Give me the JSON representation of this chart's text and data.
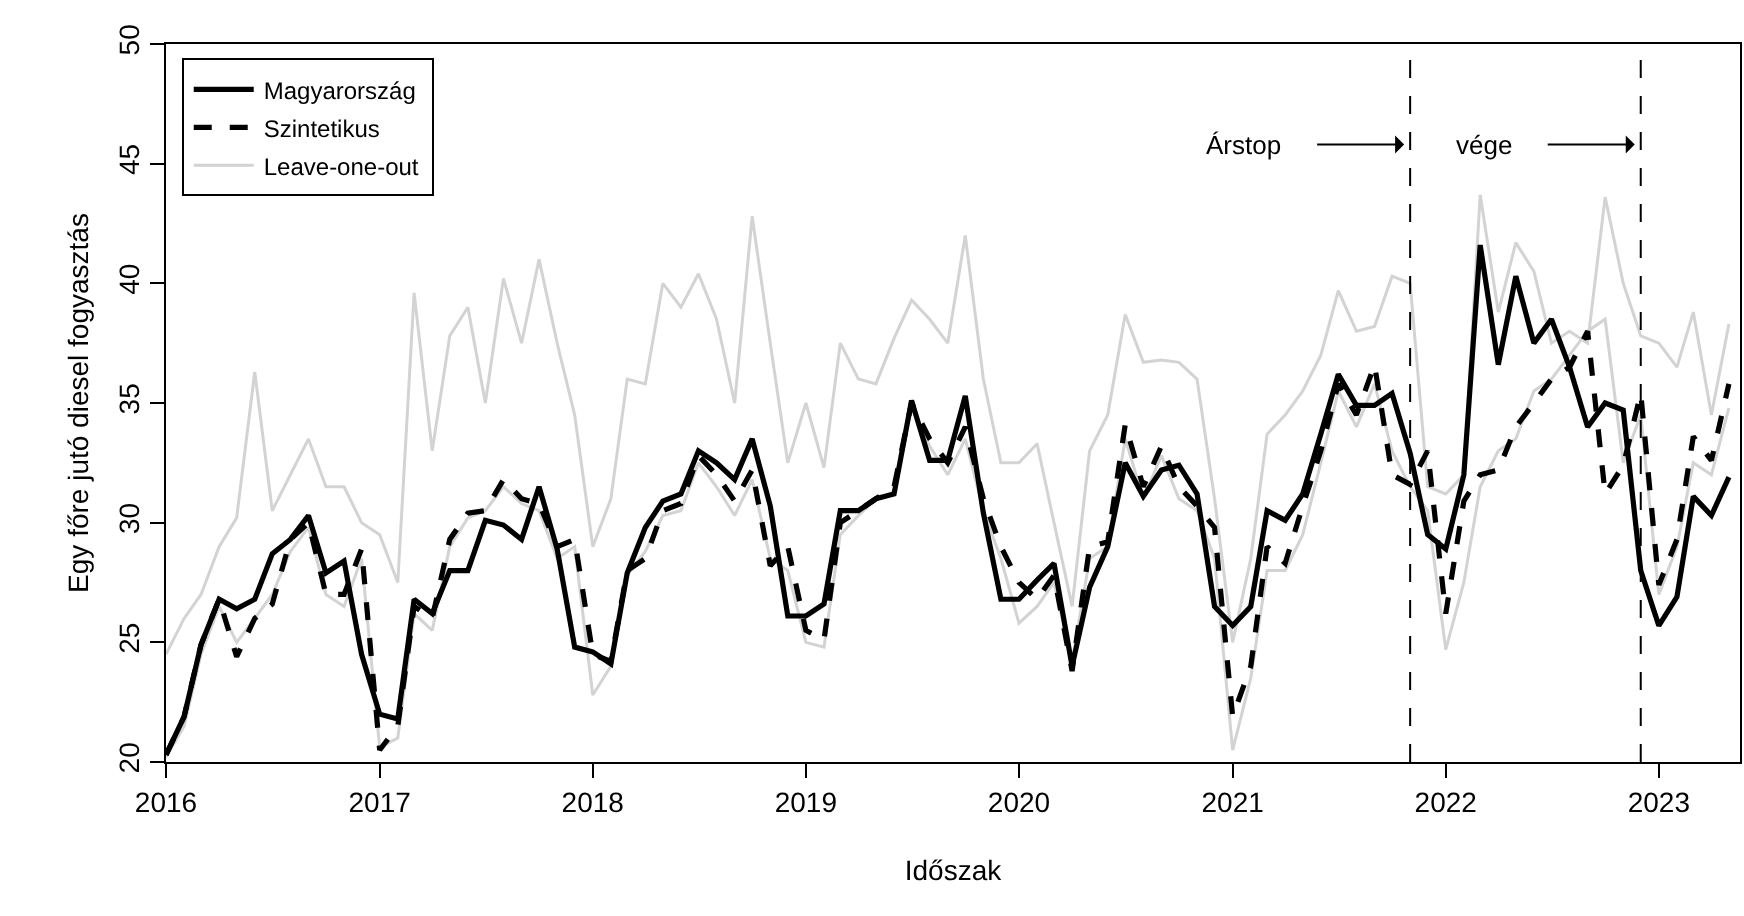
{
  "chart_data": {
    "type": "line",
    "xlabel": "Időszak",
    "ylabel": "Egy főre jutó diesel fogyasztás",
    "x": [
      "2016-01",
      "2016-02",
      "2016-03",
      "2016-04",
      "2016-05",
      "2016-06",
      "2016-07",
      "2016-08",
      "2016-09",
      "2016-10",
      "2016-11",
      "2016-12",
      "2017-01",
      "2017-02",
      "2017-03",
      "2017-04",
      "2017-05",
      "2017-06",
      "2017-07",
      "2017-08",
      "2017-09",
      "2017-10",
      "2017-11",
      "2017-12",
      "2018-01",
      "2018-02",
      "2018-03",
      "2018-04",
      "2018-05",
      "2018-06",
      "2018-07",
      "2018-08",
      "2018-09",
      "2018-10",
      "2018-11",
      "2018-12",
      "2019-01",
      "2019-02",
      "2019-03",
      "2019-04",
      "2019-05",
      "2019-06",
      "2019-07",
      "2019-08",
      "2019-09",
      "2019-10",
      "2019-11",
      "2019-12",
      "2020-01",
      "2020-02",
      "2020-03",
      "2020-04",
      "2020-05",
      "2020-06",
      "2020-07",
      "2020-08",
      "2020-09",
      "2020-10",
      "2020-11",
      "2020-12",
      "2021-01",
      "2021-02",
      "2021-03",
      "2021-04",
      "2021-05",
      "2021-06",
      "2021-07",
      "2021-08",
      "2021-09",
      "2021-10",
      "2021-11",
      "2021-12",
      "2022-01",
      "2022-02",
      "2022-03",
      "2022-04",
      "2022-05",
      "2022-06",
      "2022-07",
      "2022-08",
      "2022-09",
      "2022-10",
      "2022-11",
      "2022-12",
      "2023-01",
      "2023-02",
      "2023-03",
      "2023-04",
      "2023-05"
    ],
    "series": [
      {
        "name": "Leave-one-out",
        "color": "#d3d3d3",
        "values": [
          24.5,
          26.0,
          27.0,
          29.0,
          30.2,
          36.3,
          30.5,
          32.0,
          33.5,
          31.5,
          31.5,
          30.0,
          29.5,
          27.5,
          39.6,
          33.0,
          37.8,
          39.0,
          35.0,
          40.2,
          37.5,
          41.0,
          37.5,
          34.5,
          29.0,
          31.0,
          36.0,
          35.8,
          40.0,
          39.0,
          40.4,
          38.5,
          35.0,
          42.8,
          37.5,
          32.5,
          35.0,
          32.3,
          37.5,
          36.0,
          35.8,
          37.7,
          39.3,
          38.5,
          37.5,
          42.0,
          36.0,
          32.5,
          32.5,
          33.3,
          30.0,
          26.5,
          33.0,
          34.5,
          38.7,
          36.7,
          36.8,
          36.7,
          36.0,
          31.0,
          25.0,
          28.5,
          33.7,
          34.5,
          35.5,
          37.0,
          39.7,
          38.0,
          38.2,
          40.3,
          40.0,
          31.5,
          31.2,
          32.0,
          43.7,
          38.8,
          41.7,
          40.5,
          37.5,
          38.0,
          37.5,
          43.6,
          40.0,
          37.8,
          37.5,
          36.5,
          38.8,
          34.5,
          38.3
        ]
      },
      {
        "color": "#d3d3d3",
        "values": [
          20.2,
          21.5,
          24.5,
          26.5,
          25.0,
          26.0,
          27.0,
          28.8,
          29.8,
          27.0,
          26.5,
          28.5,
          20.6,
          21.0,
          26.2,
          25.5,
          29.0,
          30.2,
          30.5,
          31.5,
          30.8,
          30.5,
          28.5,
          29.0,
          22.8,
          24.0,
          27.8,
          28.8,
          30.3,
          30.5,
          32.5,
          31.5,
          30.3,
          31.8,
          28.5,
          28.0,
          25.0,
          24.8,
          29.5,
          30.3,
          31.0,
          31.3,
          34.8,
          33.2,
          32.0,
          33.5,
          30.5,
          28.5,
          25.8,
          26.5,
          27.5,
          24.2,
          28.5,
          29.0,
          33.5,
          31.0,
          32.8,
          31.0,
          30.5,
          28.5,
          20.5,
          23.5,
          28.0,
          28.0,
          29.5,
          32.5,
          35.5,
          34.0,
          35.8,
          33.0,
          31.5,
          30.5,
          24.7,
          27.5,
          31.5,
          33.0,
          33.5,
          35.5,
          36.0,
          37.0,
          38.0,
          38.5,
          32.5,
          34.5,
          27.0,
          29.0,
          32.5,
          32.0,
          34.8
        ]
      },
      {
        "name": "Magyarország",
        "color": "#000000",
        "values": [
          20.3,
          21.9,
          24.9,
          26.8,
          26.4,
          26.8,
          28.7,
          29.3,
          30.3,
          27.9,
          28.4,
          24.5,
          22.0,
          21.8,
          26.8,
          26.2,
          28.0,
          28.0,
          30.1,
          29.9,
          29.3,
          31.5,
          28.9,
          24.8,
          24.6,
          24.1,
          27.9,
          29.8,
          30.9,
          31.2,
          33.0,
          32.5,
          31.8,
          33.5,
          30.7,
          26.1,
          26.1,
          26.6,
          30.5,
          30.5,
          31.0,
          31.2,
          35.1,
          32.6,
          32.6,
          35.3,
          30.4,
          26.8,
          26.8,
          27.6,
          28.3,
          24.0,
          27.3,
          29.0,
          32.5,
          31.1,
          32.2,
          32.4,
          31.2,
          26.5,
          25.7,
          26.5,
          30.5,
          30.1,
          31.2,
          33.7,
          36.2,
          34.9,
          34.9,
          35.4,
          32.9,
          29.5,
          28.9,
          32.0,
          41.6,
          36.6,
          40.3,
          37.5,
          38.5,
          36.5,
          34.0,
          35.0,
          34.7,
          28.0,
          25.7,
          26.9,
          31.1,
          30.3,
          31.9
        ]
      },
      {
        "name": "Szintetikus",
        "color": "#000000",
        "line_style": "dashed",
        "values": [
          20.3,
          21.9,
          24.9,
          26.8,
          24.4,
          26.0,
          26.6,
          29.3,
          30.0,
          27.0,
          27.0,
          28.9,
          20.5,
          21.5,
          26.5,
          26.0,
          29.3,
          30.4,
          30.5,
          31.8,
          31.0,
          30.8,
          29.0,
          29.3,
          24.5,
          24.2,
          28.0,
          28.5,
          30.5,
          30.8,
          32.8,
          32.0,
          30.9,
          32.2,
          28.2,
          29.0,
          25.5,
          25.1,
          30.0,
          30.5,
          31.0,
          31.5,
          35.0,
          33.5,
          32.5,
          34.0,
          31.0,
          29.0,
          27.5,
          26.8,
          27.8,
          23.8,
          29.0,
          29.2,
          34.1,
          31.5,
          33.2,
          31.5,
          30.7,
          29.8,
          21.9,
          24.0,
          29.0,
          28.3,
          30.7,
          33.0,
          35.8,
          34.5,
          36.6,
          32.0,
          31.6,
          33.0,
          26.2,
          30.9,
          32.0,
          32.2,
          34.0,
          35.0,
          36.0,
          36.5,
          38.0,
          31.2,
          32.4,
          35.4,
          27.4,
          29.3,
          33.6,
          32.6,
          35.8
        ]
      }
    ],
    "xlim": [
      "2016-01-01",
      "2023-05-20"
    ],
    "xticks": [
      {
        "value": "2016-01",
        "label": "2016"
      },
      {
        "value": "2017-01",
        "label": "2017"
      },
      {
        "value": "2018-01",
        "label": "2018"
      },
      {
        "value": "2019-01",
        "label": "2019"
      },
      {
        "value": "2020-01",
        "label": "2020"
      },
      {
        "value": "2021-01",
        "label": "2021"
      },
      {
        "value": "2022-01",
        "label": "2022"
      },
      {
        "value": "2023-01",
        "label": "2023"
      }
    ],
    "ylim": [
      20,
      50
    ],
    "yticks": [
      20,
      25,
      30,
      35,
      40,
      45,
      50
    ],
    "ref_lines": [
      {
        "axis": "x",
        "value": "2021-11",
        "color": "#000000",
        "line_style": "dashed"
      },
      {
        "axis": "x",
        "value": "2022-12",
        "color": "#000000",
        "line_style": "dashed"
      }
    ],
    "annotations": [
      "Árstop",
      "vége"
    ],
    "legend": "top left",
    "grid": false,
    "marker": "none"
  }
}
